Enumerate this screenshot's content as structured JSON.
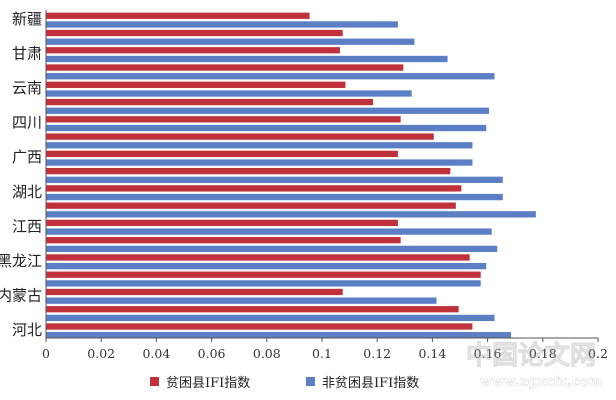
{
  "chart_data": {
    "type": "bar",
    "orientation": "horizontal",
    "xlim": [
      0,
      0.2
    ],
    "x_ticks": [
      "0",
      "0.02",
      "0.04",
      "0.06",
      "0.08",
      "0.1",
      "0.12",
      "0.14",
      "0.16",
      "0.18",
      "0.2"
    ],
    "grid": false,
    "legend_position": "bottom",
    "categories": [
      "新疆",
      "",
      "甘肃",
      "",
      "云南",
      "",
      "四川",
      "",
      "广西",
      "",
      "湖北",
      "",
      "江西",
      "",
      "黑龙江",
      "",
      "内蒙古",
      "",
      "河北"
    ],
    "series": [
      {
        "name": "贫困县IFI指数",
        "color": "#c0313b",
        "values": [
          0.0955,
          0.1075,
          0.1065,
          0.1295,
          0.1085,
          0.1185,
          0.1285,
          0.1405,
          0.1275,
          0.1465,
          0.1505,
          0.1485,
          0.1275,
          0.1285,
          0.1535,
          0.1575,
          0.1075,
          0.1495,
          0.1545
        ]
      },
      {
        "name": "非贫困县IFI指数",
        "color": "#5b7fc4",
        "values": [
          0.1275,
          0.1335,
          0.1455,
          0.1625,
          0.1325,
          0.1605,
          0.1595,
          0.1545,
          0.1545,
          0.1655,
          0.1655,
          0.1775,
          0.1615,
          0.1635,
          0.1595,
          0.1575,
          0.1415,
          0.1625,
          0.1685
        ]
      }
    ]
  },
  "watermark": {
    "chinese": "中国论文网",
    "url": "www.zgxcfx.com"
  }
}
